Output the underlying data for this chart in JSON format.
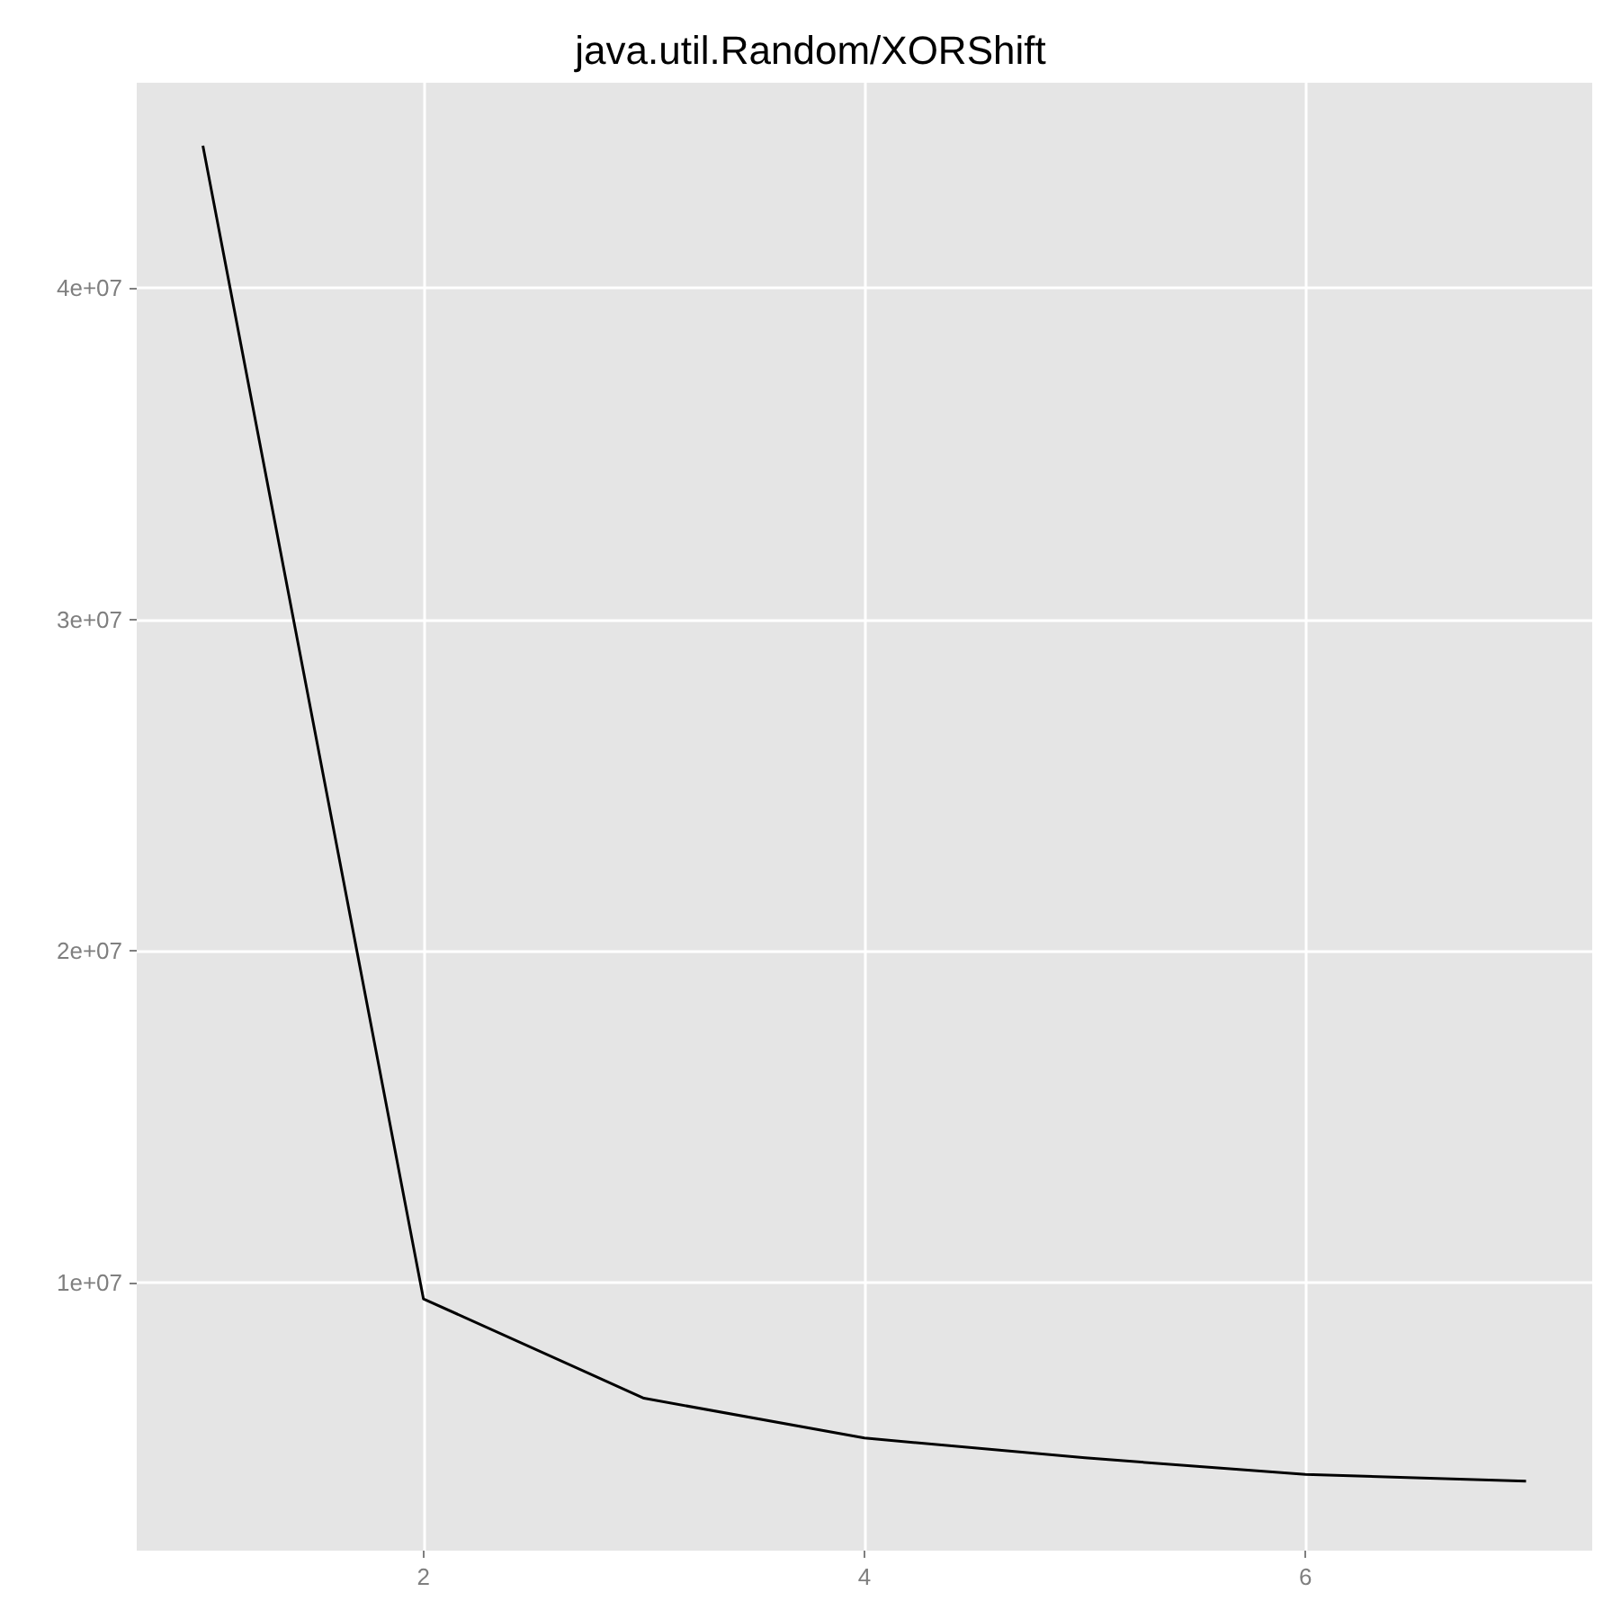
{
  "chart_data": {
    "type": "line",
    "title": "java.util.Random/XORShift",
    "x": [
      1,
      2,
      3,
      4,
      5,
      6,
      7
    ],
    "values": [
      44300000,
      9500000,
      6500000,
      5300000,
      4700000,
      4200000,
      4000000
    ],
    "color": "#000000",
    "xlim": [
      0.7,
      7.3
    ],
    "xticks": [
      2,
      4,
      6
    ],
    "ylim": [
      1900000,
      46200000
    ],
    "yticks": [
      {
        "value": 10000000,
        "label": "1e+07"
      },
      {
        "value": 20000000,
        "label": "2e+07"
      },
      {
        "value": 30000000,
        "label": "3e+07"
      },
      {
        "value": 40000000,
        "label": "4e+07"
      }
    ],
    "grid": true,
    "marker": "none",
    "line_style": "solid"
  }
}
